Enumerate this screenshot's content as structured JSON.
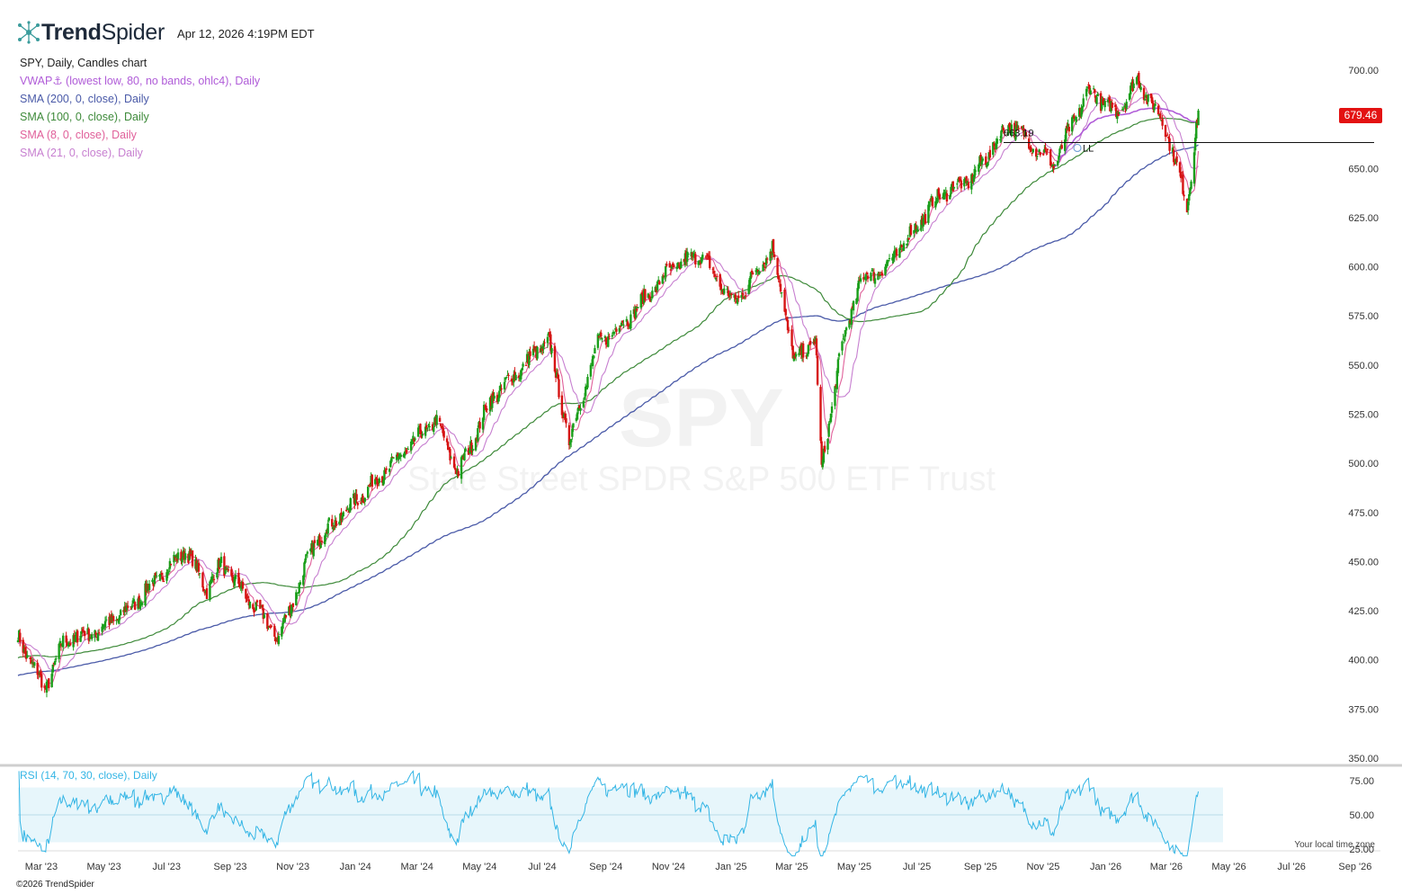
{
  "header": {
    "brand_bold": "Trend",
    "brand_light": "Spider",
    "timestamp": "Apr 12, 2026 4:19PM EDT"
  },
  "legend": {
    "title": "SPY, Daily, Candles chart",
    "items": [
      {
        "label": "VWAP⚓ (lowest low, 80, no bands, ohlc4), Daily",
        "color": "#b05cd8"
      },
      {
        "label": "SMA (200, 0, close), Daily",
        "color": "#4a5aa8"
      },
      {
        "label": "SMA (100, 0, close), Daily",
        "color": "#3e8a3a"
      },
      {
        "label": "SMA (8, 0, close), Daily",
        "color": "#e0609a"
      },
      {
        "label": "SMA (21, 0, close), Daily",
        "color": "#c77fd0"
      }
    ]
  },
  "watermark": {
    "ticker": "SPY",
    "name": "State Street SPDR S&P 500 ETF Trust"
  },
  "annotations": {
    "level_label": "663.19",
    "level_value": 663.19,
    "ll_label": "LL",
    "last_price": "679.46"
  },
  "rsi": {
    "label": "RSI (14, 70, 30, close), Daily",
    "ticks": [
      "75.00",
      "50.00",
      "25.00"
    ],
    "color": "#33b5e5"
  },
  "footer": {
    "local_tz": "Your local time zone",
    "copyright": "©2026 TrendSpider"
  },
  "colors": {
    "up": "#1a9e1a",
    "down": "#d61313",
    "sma200": "#4a5aa8",
    "sma100": "#3e8a3a",
    "sma8": "#e0609a",
    "sma21": "#c77fd0",
    "vwap": "#b05cd8"
  },
  "chart_data": {
    "type": "candlestick",
    "title": "SPY, Daily, Candles chart",
    "y_ticks": [
      "700.00",
      "675.00",
      "650.00",
      "625.00",
      "600.00",
      "575.00",
      "550.00",
      "525.00",
      "500.00",
      "475.00",
      "450.00",
      "425.00",
      "400.00",
      "375.00",
      "350.00"
    ],
    "ylim": [
      350,
      700
    ],
    "x_ticks": [
      "Mar '23",
      "May '23",
      "Jul '23",
      "Sep '23",
      "Nov '23",
      "Jan '24",
      "Mar '24",
      "May '24",
      "Jul '24",
      "Sep '24",
      "Nov '24",
      "Jan '25",
      "Mar '25",
      "May '25",
      "Jul '25",
      "Sep '25",
      "Nov '25",
      "Jan '26",
      "Mar '26",
      "May '26",
      "Jul '26",
      "Sep '26"
    ],
    "price_path": [
      [
        "2023-02-15",
        412
      ],
      [
        "2023-03-13",
        385
      ],
      [
        "2023-04-01",
        410
      ],
      [
        "2023-05-01",
        414
      ],
      [
        "2023-06-01",
        425
      ],
      [
        "2023-07-28",
        456
      ],
      [
        "2023-08-18",
        436
      ],
      [
        "2023-09-01",
        449
      ],
      [
        "2023-10-27",
        411
      ],
      [
        "2023-12-01",
        460
      ],
      [
        "2024-01-01",
        476
      ],
      [
        "2024-03-28",
        522
      ],
      [
        "2024-04-19",
        495
      ],
      [
        "2024-05-20",
        532
      ],
      [
        "2024-07-16",
        563
      ],
      [
        "2024-08-05",
        511
      ],
      [
        "2024-09-01",
        560
      ],
      [
        "2024-09-30",
        573
      ],
      [
        "2024-11-11",
        598
      ],
      [
        "2024-12-10",
        607
      ],
      [
        "2025-01-13",
        581
      ],
      [
        "2025-02-19",
        610
      ],
      [
        "2025-03-13",
        551
      ],
      [
        "2025-04-02",
        564
      ],
      [
        "2025-04-08",
        496
      ],
      [
        "2025-04-25",
        553
      ],
      [
        "2025-05-15",
        593
      ],
      [
        "2025-06-10",
        600
      ],
      [
        "2025-07-31",
        636
      ],
      [
        "2025-09-01",
        645
      ],
      [
        "2025-10-08",
        673
      ],
      [
        "2025-11-20",
        652
      ],
      [
        "2025-12-24",
        690
      ],
      [
        "2026-01-20",
        678
      ],
      [
        "2026-02-10",
        695
      ],
      [
        "2026-03-10",
        670
      ],
      [
        "2026-03-30",
        631
      ],
      [
        "2026-04-10",
        679.46
      ]
    ],
    "last_price": 679.46,
    "horizontal_level": 663.19
  }
}
